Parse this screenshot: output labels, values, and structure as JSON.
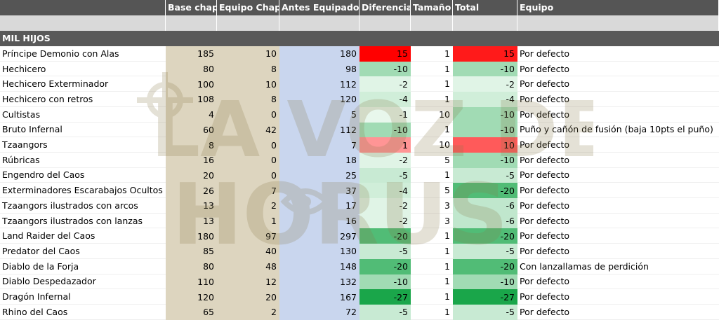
{
  "headers": [
    "",
    "Base chap",
    "Equipo Chap",
    "Antes Equipados",
    "Diferencia",
    "Tamaño",
    "Total",
    "Equipo"
  ],
  "section_title": "MIL HIJOS",
  "rows": [
    {
      "name": "Príncipe Demonio con Alas",
      "base": "185",
      "equipo_chap": "10",
      "antes": "180",
      "diferencia": "15",
      "tamano": "1",
      "total": "15",
      "equipo": "Por defecto"
    },
    {
      "name": "Hechicero",
      "base": "80",
      "equipo_chap": "8",
      "antes": "98",
      "diferencia": "-10",
      "tamano": "1",
      "total": "-10",
      "equipo": "Por defecto"
    },
    {
      "name": "Hechicero Exterminador",
      "base": "100",
      "equipo_chap": "10",
      "antes": "112",
      "diferencia": "-2",
      "tamano": "1",
      "total": "-2",
      "equipo": "Por defecto"
    },
    {
      "name": "Hechicero con retros",
      "base": "108",
      "equipo_chap": "8",
      "antes": "120",
      "diferencia": "-4",
      "tamano": "1",
      "total": "-4",
      "equipo": "Por defecto"
    },
    {
      "name": "Cultistas",
      "base": "4",
      "equipo_chap": "0",
      "antes": "5",
      "diferencia": "-1",
      "tamano": "10",
      "total": "-10",
      "equipo": "Por defecto"
    },
    {
      "name": "Bruto Infernal",
      "base": "60",
      "equipo_chap": "42",
      "antes": "112",
      "diferencia": "-10",
      "tamano": "1",
      "total": "-10",
      "equipo": "Puño y cañón de fusión (baja 10pts el puño)"
    },
    {
      "name": "Tzaangors",
      "base": "8",
      "equipo_chap": "0",
      "antes": "7",
      "diferencia": "1",
      "tamano": "10",
      "total": "10",
      "equipo": "Por defecto"
    },
    {
      "name": "Rúbricas",
      "base": "16",
      "equipo_chap": "0",
      "antes": "18",
      "diferencia": "-2",
      "tamano": "5",
      "total": "-10",
      "equipo": "Por defecto"
    },
    {
      "name": "Engendro del Caos",
      "base": "20",
      "equipo_chap": "0",
      "antes": "25",
      "diferencia": "-5",
      "tamano": "1",
      "total": "-5",
      "equipo": "Por defecto"
    },
    {
      "name": "Exterminadores Escarabajos Ocultos",
      "base": "26",
      "equipo_chap": "7",
      "antes": "37",
      "diferencia": "-4",
      "tamano": "5",
      "total": "-20",
      "equipo": "Por defecto"
    },
    {
      "name": "Tzaangors ilustrados con arcos",
      "base": "13",
      "equipo_chap": "2",
      "antes": "17",
      "diferencia": "-2",
      "tamano": "3",
      "total": "-6",
      "equipo": "Por defecto"
    },
    {
      "name": "Tzaangors ilustrados con lanzas",
      "base": "13",
      "equipo_chap": "1",
      "antes": "16",
      "diferencia": "-2",
      "tamano": "3",
      "total": "-6",
      "equipo": "Por defecto"
    },
    {
      "name": "Land Raider del Caos",
      "base": "180",
      "equipo_chap": "97",
      "antes": "297",
      "diferencia": "-20",
      "tamano": "1",
      "total": "-20",
      "equipo": "Por defecto"
    },
    {
      "name": "Predator del Caos",
      "base": "85",
      "equipo_chap": "40",
      "antes": "130",
      "diferencia": "-5",
      "tamano": "1",
      "total": "-5",
      "equipo": "Por defecto"
    },
    {
      "name": "Diablo de la Forja",
      "base": "80",
      "equipo_chap": "48",
      "antes": "148",
      "diferencia": "-20",
      "tamano": "1",
      "total": "-20",
      "equipo": "Con lanzallamas de perdición"
    },
    {
      "name": "Diablo Despedazador",
      "base": "110",
      "equipo_chap": "12",
      "antes": "132",
      "diferencia": "-10",
      "tamano": "1",
      "total": "-10",
      "equipo": "Por defecto"
    },
    {
      "name": "Dragón Infernal",
      "base": "120",
      "equipo_chap": "20",
      "antes": "167",
      "diferencia": "-27",
      "tamano": "1",
      "total": "-27",
      "equipo": "Por defecto"
    },
    {
      "name": "Rhino del Caos",
      "base": "65",
      "equipo_chap": "2",
      "antes": "72",
      "diferencia": "-5",
      "tamano": "1",
      "total": "-5",
      "equipo": "Por defecto"
    }
  ],
  "colors": {
    "header_bg": "#555555",
    "base_col_bg": "#ddd5bf",
    "antes_col_bg": "#c9d6ee",
    "positive_max": "#ff0000",
    "negative_max": "#1aa64a"
  },
  "watermark": {
    "line1": "LA VOZ DE",
    "line2": "HORUS"
  }
}
